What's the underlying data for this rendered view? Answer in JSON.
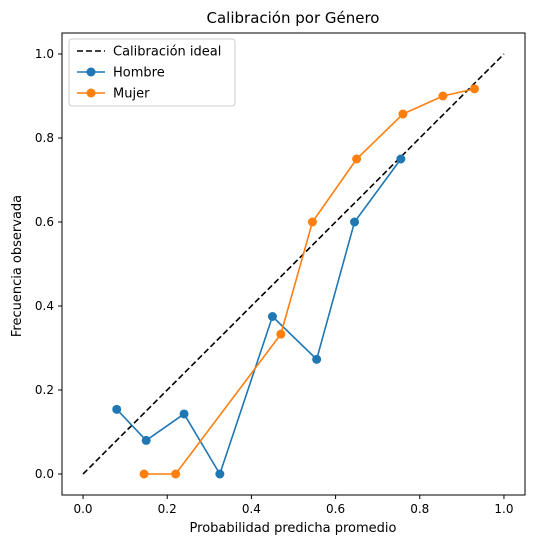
{
  "chart_data": {
    "type": "line",
    "title": "Calibración por Género",
    "xlabel": "Probabilidad predicha promedio",
    "ylabel": "Frecuencia observada",
    "xlim": [
      -0.05,
      1.05
    ],
    "ylim": [
      -0.05,
      1.05
    ],
    "xticks": [
      "0.0",
      "0.2",
      "0.4",
      "0.6",
      "0.8",
      "1.0"
    ],
    "yticks": [
      "0.0",
      "0.2",
      "0.4",
      "0.6",
      "0.8",
      "1.0"
    ],
    "grid": false,
    "legend_position": "top-left",
    "series": [
      {
        "name": "Calibración ideal",
        "style": "dashed",
        "color": "#000000",
        "markers": false,
        "points": [
          [
            0.0,
            0.0
          ],
          [
            1.0,
            1.0
          ]
        ]
      },
      {
        "name": "Hombre",
        "style": "solid",
        "color": "#1f77b4",
        "markers": true,
        "points": [
          [
            0.08,
            0.154
          ],
          [
            0.15,
            0.08
          ],
          [
            0.24,
            0.143
          ],
          [
            0.325,
            0.0
          ],
          [
            0.45,
            0.375
          ],
          [
            0.555,
            0.273
          ],
          [
            0.645,
            0.6
          ],
          [
            0.755,
            0.75
          ]
        ]
      },
      {
        "name": "Mujer",
        "style": "solid",
        "color": "#ff7f0e",
        "markers": true,
        "points": [
          [
            0.145,
            0.0
          ],
          [
            0.22,
            0.0
          ],
          [
            0.47,
            0.333
          ],
          [
            0.545,
            0.6
          ],
          [
            0.65,
            0.75
          ],
          [
            0.76,
            0.857
          ],
          [
            0.855,
            0.9
          ],
          [
            0.93,
            0.917
          ]
        ]
      }
    ]
  }
}
